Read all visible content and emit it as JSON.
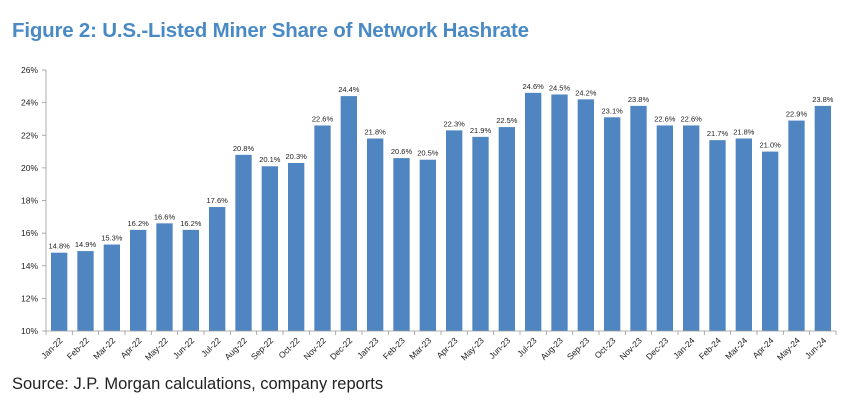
{
  "figure": {
    "title": "Figure 2: U.S.-Listed Miner Share of Network Hashrate",
    "source": "Source: J.P. Morgan calculations, company reports"
  },
  "chart_data": {
    "type": "bar",
    "title": "Figure 2: U.S.-Listed Miner Share of Network Hashrate",
    "xlabel": "",
    "ylabel": "",
    "ylim": [
      0.1,
      0.26
    ],
    "yticks": [
      "10%",
      "12%",
      "14%",
      "16%",
      "18%",
      "20%",
      "22%",
      "24%",
      "26%"
    ],
    "grid": false,
    "bar_color": "#4f86c1",
    "categories": [
      "Jan-22",
      "Feb-22",
      "Mar-22",
      "Apr-22",
      "May-22",
      "Jun-22",
      "Jul-22",
      "Aug-22",
      "Sep-22",
      "Oct-22",
      "Nov-22",
      "Dec-22",
      "Jan-23",
      "Feb-23",
      "Mar-23",
      "Apr-23",
      "May-23",
      "Jun-23",
      "Jul-23",
      "Aug-23",
      "Sep-23",
      "Oct-23",
      "Nov-23",
      "Dec-23",
      "Jan-24",
      "Feb-24",
      "Mar-24",
      "Apr-24",
      "May-24",
      "Jun-24"
    ],
    "values": [
      0.148,
      0.149,
      0.153,
      0.162,
      0.166,
      0.162,
      0.176,
      0.208,
      0.201,
      0.203,
      0.226,
      0.244,
      0.218,
      0.206,
      0.205,
      0.223,
      0.219,
      0.225,
      0.246,
      0.245,
      0.242,
      0.231,
      0.238,
      0.226,
      0.226,
      0.217,
      0.218,
      0.21,
      0.229,
      0.238
    ],
    "data_labels": [
      "14.8%",
      "14.9%",
      "15.3%",
      "16.2%",
      "16.6%",
      "16.2%",
      "17.6%",
      "20.8%",
      "20.1%",
      "20.3%",
      "22.6%",
      "24.4%",
      "21.8%",
      "20.6%",
      "20.5%",
      "22.3%",
      "21.9%",
      "22.5%",
      "24.6%",
      "24.5%",
      "24.2%",
      "23.1%",
      "23.8%",
      "22.6%",
      "22.6%",
      "21.7%",
      "21.8%",
      "21.0%",
      "22.9%",
      "23.8%"
    ]
  }
}
